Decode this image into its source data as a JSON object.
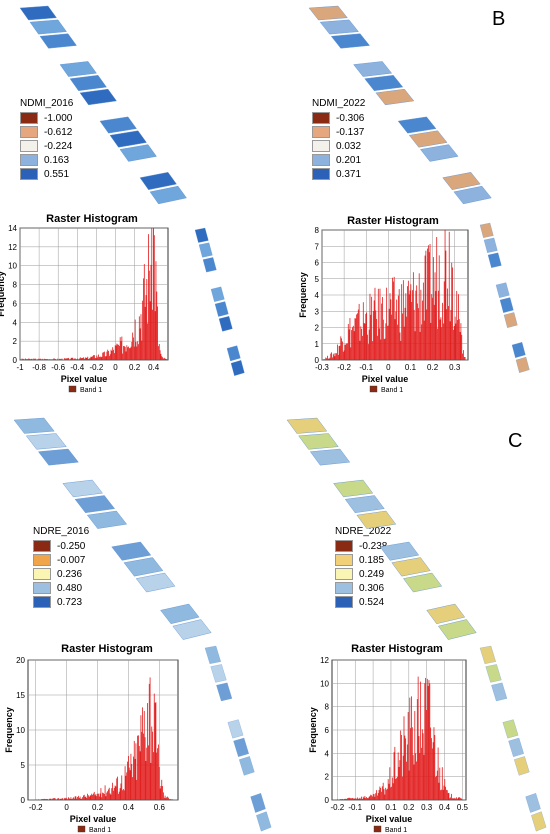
{
  "panels": [
    {
      "letter": "",
      "legend": {
        "title": "NDMI_2016",
        "items": [
          {
            "label": "-1.000",
            "color": "#8b2a12"
          },
          {
            "label": "-0.612",
            "color": "#e7a77e"
          },
          {
            "label": "-0.224",
            "color": "#f4f0ea"
          },
          {
            "label": "0.163",
            "color": "#8cb2dd"
          },
          {
            "label": "0.551",
            "color": "#2b62b8"
          }
        ]
      },
      "map_colors": [
        "#2f6cc0",
        "#6fa6dc",
        "#4b87cf"
      ]
    },
    {
      "letter": "B",
      "legend": {
        "title": "NDMI_2022",
        "items": [
          {
            "label": "-0.306",
            "color": "#8b2a12"
          },
          {
            "label": "-0.137",
            "color": "#e7a77e"
          },
          {
            "label": "0.032",
            "color": "#f4f0ea"
          },
          {
            "label": "0.201",
            "color": "#8cb2dd"
          },
          {
            "label": "0.371",
            "color": "#2b62b8"
          }
        ]
      },
      "map_colors": [
        "#d9a77b",
        "#8cb2dd",
        "#4b87cf"
      ]
    },
    {
      "letter": "",
      "legend": {
        "title": "NDRE_2016",
        "items": [
          {
            "label": "-0.250",
            "color": "#8b2a12"
          },
          {
            "label": "-0.007",
            "color": "#f0a54a"
          },
          {
            "label": "0.236",
            "color": "#fbf5b4"
          },
          {
            "label": "0.480",
            "color": "#9dbfe0"
          },
          {
            "label": "0.723",
            "color": "#2b62b8"
          }
        ]
      },
      "map_colors": [
        "#8fb9de",
        "#b8d2ea",
        "#6d9fd6"
      ]
    },
    {
      "letter": "C",
      "legend": {
        "title": "NDRE_2022",
        "items": [
          {
            "label": "-0.238",
            "color": "#8b2a12"
          },
          {
            "label": "0.185",
            "color": "#f2d07a"
          },
          {
            "label": "0.249",
            "color": "#fbf5b4"
          },
          {
            "label": "0.306",
            "color": "#9dbfe0"
          },
          {
            "label": "0.524",
            "color": "#2b62b8"
          }
        ]
      },
      "map_colors": [
        "#e6cf7a",
        "#c8d98a",
        "#9dbfe0"
      ]
    }
  ],
  "chart_data": [
    {
      "type": "bar",
      "title": "Raster Histogram",
      "xlabel": "Pixel value",
      "ylabel": "Frequency",
      "legend": "Band 1",
      "xlim": [
        -1,
        0.55
      ],
      "ylim": [
        0,
        14
      ],
      "xticks": [
        "-1",
        "-0.8",
        "-0.6",
        "-0.4",
        "-0.2",
        "0",
        "0.2",
        "0.4"
      ],
      "xtick_values": [
        -1,
        -0.8,
        -0.6,
        -0.4,
        -0.2,
        0,
        0.2,
        0.4
      ],
      "yticks": [
        "0",
        "2",
        "4",
        "6",
        "8",
        "10",
        "12",
        "14"
      ],
      "ytick_values": [
        0,
        2,
        4,
        6,
        8,
        10,
        12,
        14
      ],
      "series_color": "#e21b1b",
      "profile": [
        [
          -1,
          0.1
        ],
        [
          -0.6,
          0.1
        ],
        [
          -0.3,
          0.2
        ],
        [
          -0.1,
          0.6
        ],
        [
          0.1,
          1.8
        ],
        [
          0.25,
          4.5
        ],
        [
          0.33,
          8
        ],
        [
          0.38,
          12
        ],
        [
          0.4,
          13.2
        ],
        [
          0.42,
          9
        ],
        [
          0.45,
          2
        ],
        [
          0.48,
          0.3
        ],
        [
          0.55,
          0
        ]
      ]
    },
    {
      "type": "bar",
      "title": "Raster Histogram",
      "xlabel": "Pixel value",
      "ylabel": "Frequency",
      "legend": "Band 1",
      "xlim": [
        -0.3,
        0.36
      ],
      "ylim": [
        0,
        8
      ],
      "xticks": [
        "-0.3",
        "-0.2",
        "-0.1",
        "0",
        "0.1",
        "0.2",
        "0.3"
      ],
      "xtick_values": [
        -0.3,
        -0.2,
        -0.1,
        0,
        0.1,
        0.2,
        0.3
      ],
      "yticks": [
        "0",
        "1",
        "2",
        "3",
        "4",
        "5",
        "6",
        "7",
        "8"
      ],
      "ytick_values": [
        0,
        1,
        2,
        3,
        4,
        5,
        6,
        7,
        8
      ],
      "series_color": "#e21b1b",
      "profile": [
        [
          -0.3,
          0
        ],
        [
          -0.24,
          0.4
        ],
        [
          -0.2,
          1.5
        ],
        [
          -0.1,
          2.5
        ],
        [
          0,
          3
        ],
        [
          0.1,
          3.5
        ],
        [
          0.2,
          4.5
        ],
        [
          0.27,
          6.5
        ],
        [
          0.3,
          5
        ],
        [
          0.32,
          2
        ],
        [
          0.35,
          0
        ]
      ]
    },
    {
      "type": "bar",
      "title": "Raster Histogram",
      "xlabel": "Pixel value",
      "ylabel": "Frequency",
      "legend": "Band 1",
      "xlim": [
        -0.25,
        0.72
      ],
      "ylim": [
        0,
        20
      ],
      "xticks": [
        "-0.2",
        "0",
        "0.2",
        "0.4",
        "0.6"
      ],
      "xtick_values": [
        -0.2,
        0,
        0.2,
        0.4,
        0.6
      ],
      "yticks": [
        "0",
        "5",
        "10",
        "15",
        "20"
      ],
      "ytick_values": [
        0,
        5,
        10,
        15,
        20
      ],
      "series_color": "#e21b1b",
      "profile": [
        [
          -0.25,
          0
        ],
        [
          0.05,
          0.3
        ],
        [
          0.2,
          0.8
        ],
        [
          0.35,
          2.5
        ],
        [
          0.45,
          6
        ],
        [
          0.5,
          11
        ],
        [
          0.53,
          15
        ],
        [
          0.56,
          12
        ],
        [
          0.6,
          4
        ],
        [
          0.63,
          0.5
        ],
        [
          0.7,
          0
        ]
      ]
    },
    {
      "type": "bar",
      "title": "Raster Histogram",
      "xlabel": "Pixel value",
      "ylabel": "Frequency",
      "legend": "Band 1",
      "xlim": [
        -0.23,
        0.52
      ],
      "ylim": [
        0,
        12
      ],
      "xticks": [
        "-0.2",
        "-0.1",
        "0",
        "0.1",
        "0.2",
        "0.3",
        "0.4",
        "0.5"
      ],
      "xtick_values": [
        -0.2,
        -0.1,
        0,
        0.1,
        0.2,
        0.3,
        0.4,
        0.5
      ],
      "yticks": [
        "0",
        "2",
        "4",
        "6",
        "8",
        "10",
        "12"
      ],
      "ytick_values": [
        0,
        2,
        4,
        6,
        8,
        10,
        12
      ],
      "series_color": "#e21b1b",
      "profile": [
        [
          -0.23,
          0
        ],
        [
          0,
          0.3
        ],
        [
          0.08,
          1.2
        ],
        [
          0.14,
          3.5
        ],
        [
          0.2,
          5.5
        ],
        [
          0.26,
          6.8
        ],
        [
          0.31,
          7.5
        ],
        [
          0.34,
          5
        ],
        [
          0.38,
          2
        ],
        [
          0.42,
          0.4
        ],
        [
          0.52,
          0
        ]
      ]
    }
  ]
}
